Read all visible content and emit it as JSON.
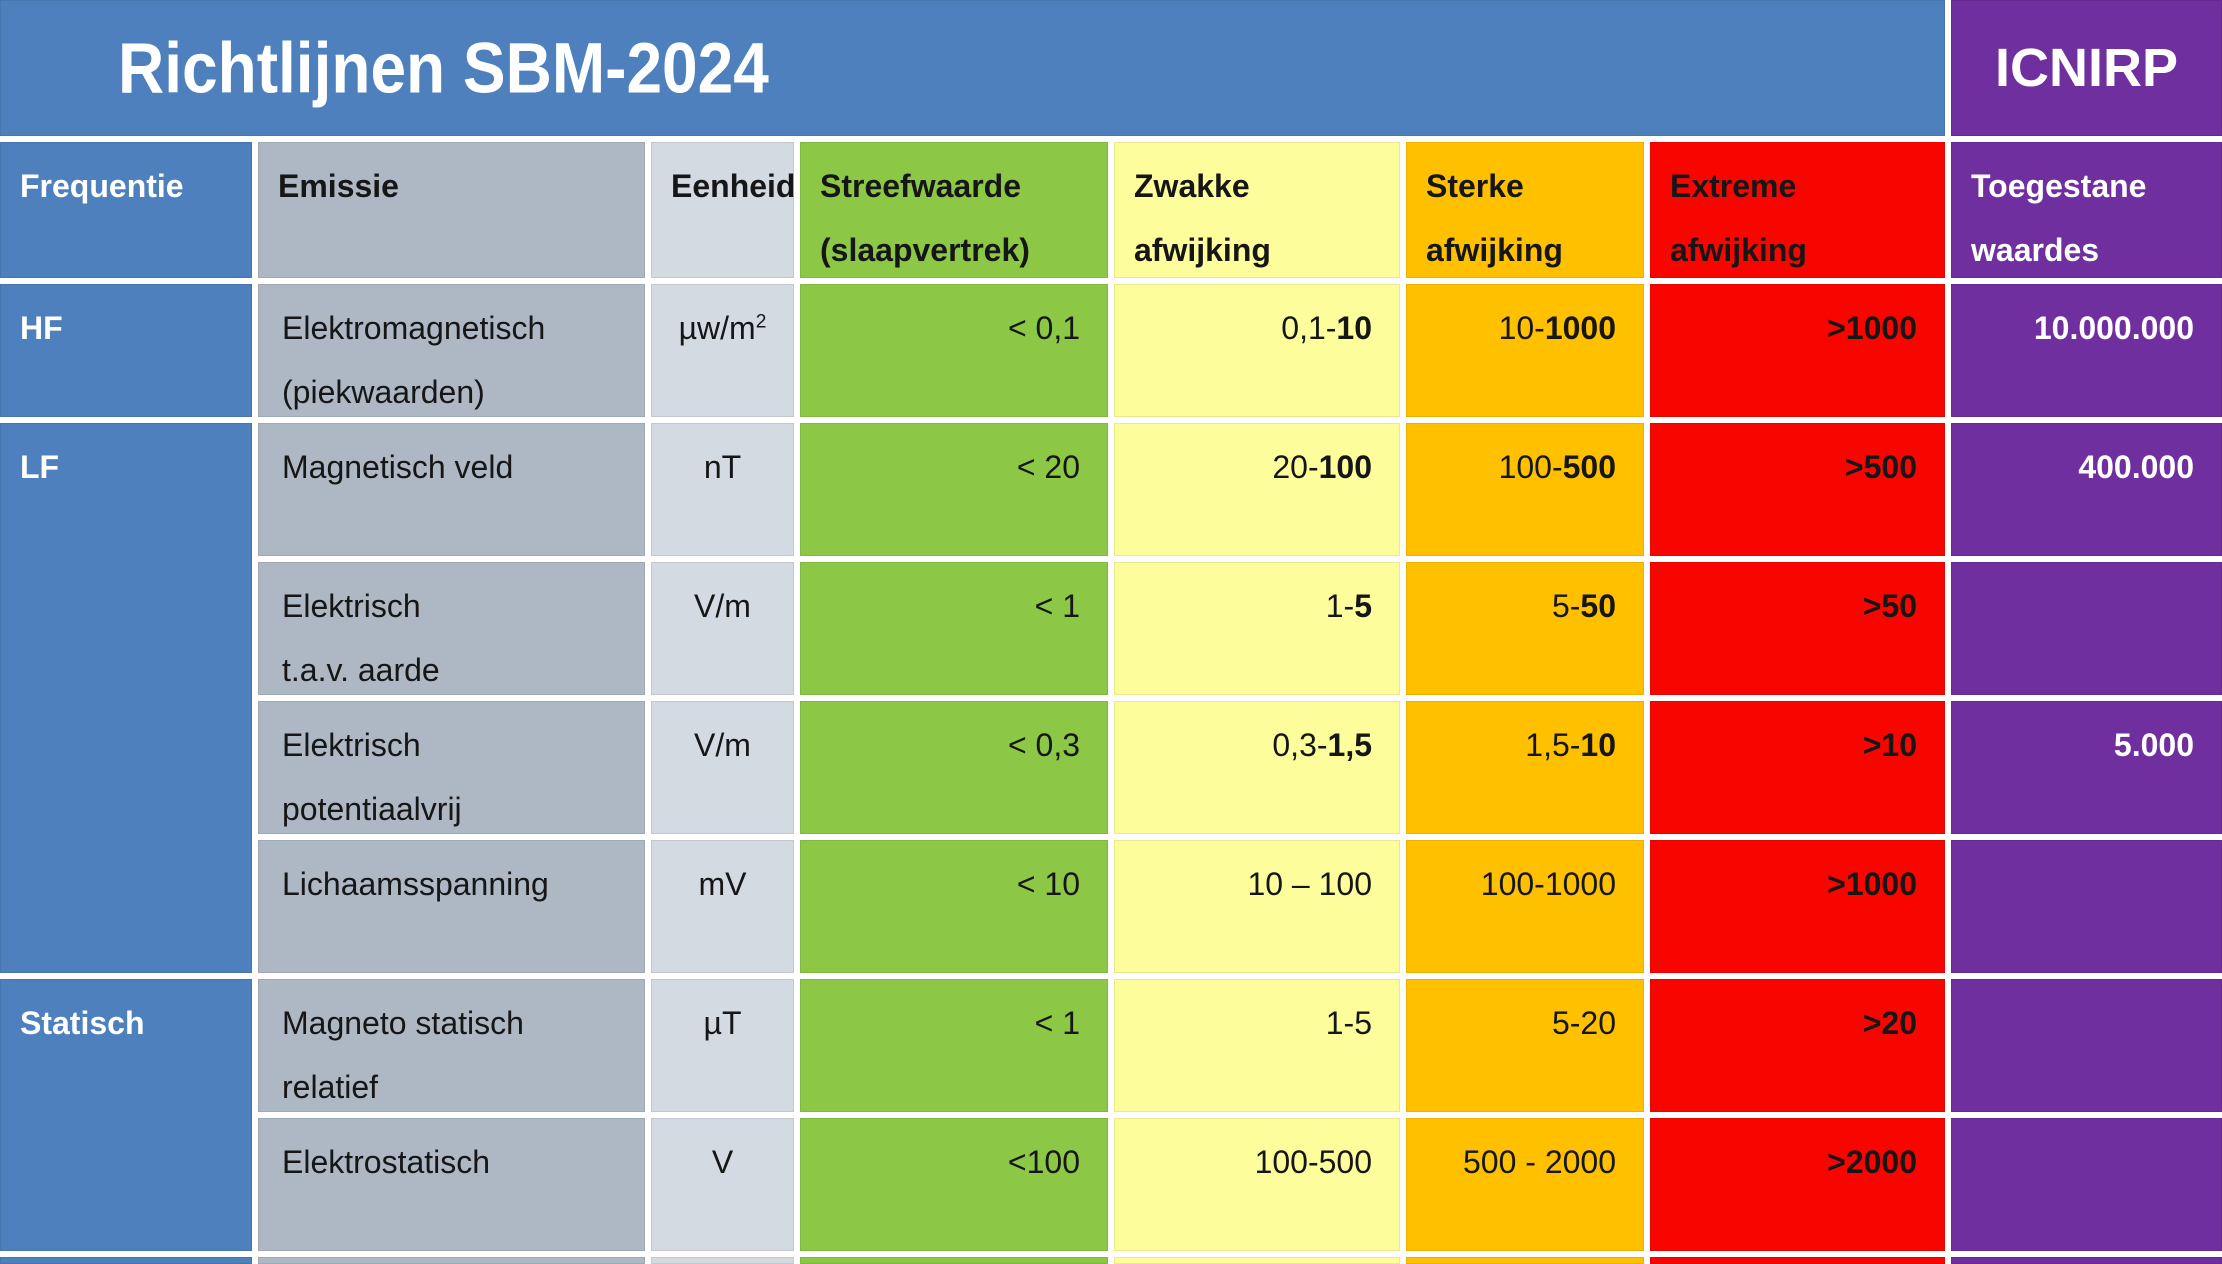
{
  "title": "Richtlijnen SBM-2024",
  "icnirp_label": "ICNIRP",
  "colors": {
    "blue": "#4E80BE",
    "gray": "#AEB7C4",
    "light_gray": "#D4DAE2",
    "green": "#8CC846",
    "yellow": "#FDFD9C",
    "orange": "#FFC000",
    "red": "#F90500",
    "purple": "#6F2F9F",
    "header_text_dark": "#161616",
    "header_text_light": "#FFFFFF"
  },
  "headers": {
    "frequentie": [
      "Frequentie"
    ],
    "emissie": [
      "Emissie"
    ],
    "eenheid": [
      "Eenheid"
    ],
    "streefwaarde": [
      "Streefwaarde",
      "(slaapvertrek)"
    ],
    "zwakke": [
      "Zwakke",
      "afwijking"
    ],
    "sterke": [
      "Sterke",
      "afwijking"
    ],
    "extreme": [
      "Extreme",
      "afwijking"
    ],
    "toegestane": [
      "Toegestane",
      "waardes"
    ]
  },
  "freq_groups": {
    "hf": "HF",
    "lf": "LF",
    "statisch": "Statisch"
  },
  "rows": [
    {
      "emissie": [
        "Elektromagnetisch",
        "(piekwaarden)"
      ],
      "eenheid": "µw/m",
      "eenheid_sup": "2",
      "streefwaarde": "< 0,1",
      "zwak": [
        "0,1-",
        "10"
      ],
      "sterk": [
        "10-",
        "1000"
      ],
      "extreem": ">1000",
      "toegestaan": "10.000.000"
    },
    {
      "emissie": [
        "Magnetisch veld"
      ],
      "eenheid": "nT",
      "streefwaarde": "< 20",
      "zwak": [
        "20-",
        "100"
      ],
      "sterk": [
        "100-",
        "500"
      ],
      "extreem": ">500",
      "toegestaan": "400.000"
    },
    {
      "emissie": [
        "Elektrisch",
        "t.a.v. aarde"
      ],
      "eenheid": "V/m",
      "streefwaarde": "< 1",
      "zwak": [
        "1-",
        "5"
      ],
      "sterk": [
        "5-",
        "50"
      ],
      "extreem": ">50",
      "toegestaan": ""
    },
    {
      "emissie": [
        "Elektrisch",
        "potentiaalvrij"
      ],
      "eenheid": "V/m",
      "streefwaarde": "< 0,3",
      "zwak": [
        "0,3-",
        "1,5"
      ],
      "sterk": [
        "1,5-",
        "10"
      ],
      "extreem": ">10",
      "toegestaan": "5.000"
    },
    {
      "emissie": [
        "Lichaamsspanning"
      ],
      "eenheid": "mV",
      "streefwaarde": "< 10",
      "zwak": [
        "10 – 100",
        ""
      ],
      "sterk": [
        "100-1000",
        ""
      ],
      "extreem": ">1000",
      "toegestaan": ""
    },
    {
      "emissie": [
        "Magneto statisch",
        "relatief"
      ],
      "eenheid": "µT",
      "streefwaarde": "< 1",
      "zwak": [
        "1-5",
        ""
      ],
      "sterk": [
        "5-20",
        ""
      ],
      "extreem": ">20",
      "toegestaan": ""
    },
    {
      "emissie": [
        "Elektrostatisch"
      ],
      "eenheid": "V",
      "streefwaarde": "<100",
      "zwak": [
        "100-500",
        ""
      ],
      "sterk": [
        "500 - 2000",
        ""
      ],
      "extreem": ">2000",
      "toegestaan": ""
    }
  ]
}
